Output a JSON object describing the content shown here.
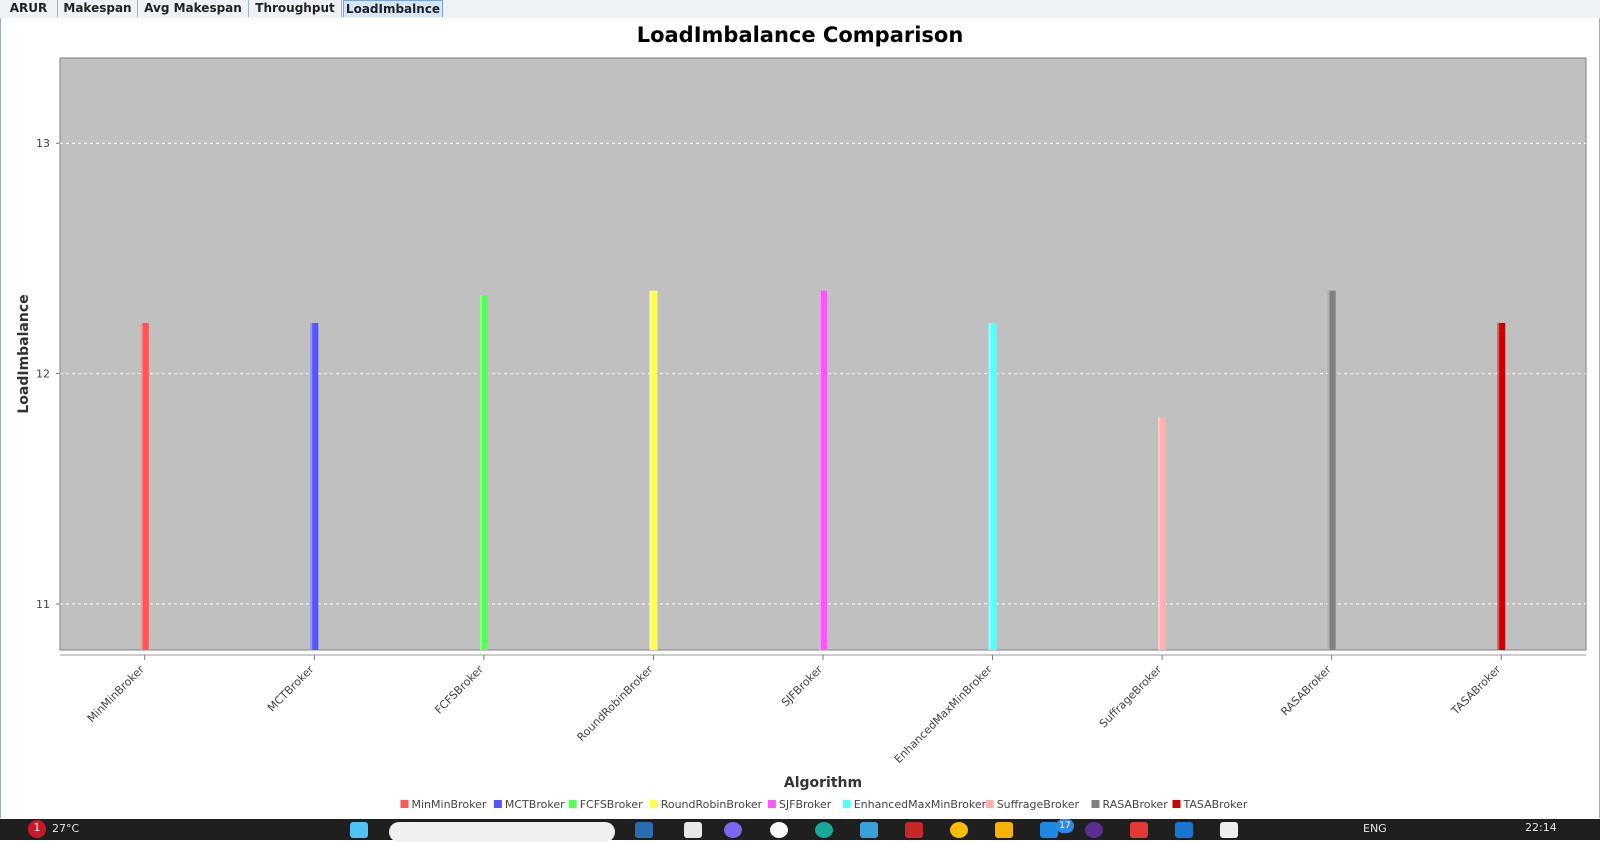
{
  "tabs": [
    {
      "label": "ARUR",
      "active": false
    },
    {
      "label": "Makespan",
      "active": false
    },
    {
      "label": "Avg Makespan",
      "active": false
    },
    {
      "label": "Throughput",
      "active": false
    },
    {
      "label": "LoadImbalnce",
      "active": true
    }
  ],
  "chart_data": {
    "type": "bar",
    "title": "LoadImbalance Comparison",
    "xlabel": "Algorithm",
    "ylabel": "LoadImbalance",
    "ylim": [
      10.8,
      13.37
    ],
    "yticks": [
      11,
      12,
      13
    ],
    "grid": true,
    "legend_position": "bottom",
    "plot_background": "#c0c0c0",
    "categories": [
      "MinMinBroker",
      "MCTBroker",
      "FCFSBroker",
      "RoundRobinBroker",
      "SJFBroker",
      "EnhancedMaxMinBroker",
      "SuffrageBroker",
      "RASABroker",
      "TASABroker"
    ],
    "series": [
      {
        "name": "MinMinBroker",
        "color": "#ff5555",
        "values": [
          12.22,
          null,
          null,
          null,
          null,
          null,
          null,
          null,
          null
        ]
      },
      {
        "name": "MCTBroker",
        "color": "#5555ff",
        "values": [
          null,
          12.22,
          null,
          null,
          null,
          null,
          null,
          null,
          null
        ]
      },
      {
        "name": "FCFSBroker",
        "color": "#55ff55",
        "values": [
          null,
          null,
          12.34,
          null,
          null,
          null,
          null,
          null,
          null
        ]
      },
      {
        "name": "RoundRobinBroker",
        "color": "#ffff55",
        "values": [
          null,
          null,
          null,
          12.36,
          null,
          null,
          null,
          null,
          null
        ]
      },
      {
        "name": "SJFBroker",
        "color": "#ff55ff",
        "values": [
          null,
          null,
          null,
          null,
          12.36,
          null,
          null,
          null,
          null
        ]
      },
      {
        "name": "EnhancedMaxMinBroker",
        "color": "#55ffff",
        "values": [
          null,
          null,
          null,
          null,
          null,
          12.22,
          null,
          null,
          null
        ]
      },
      {
        "name": "SuffrageBroker",
        "color": "#ffafaf",
        "values": [
          null,
          null,
          null,
          null,
          null,
          null,
          11.81,
          null,
          null
        ]
      },
      {
        "name": "RASABroker",
        "color": "#808080",
        "values": [
          null,
          null,
          null,
          null,
          null,
          null,
          null,
          12.36,
          null
        ]
      },
      {
        "name": "TASABroker",
        "color": "#cc0000",
        "values": [
          null,
          null,
          null,
          null,
          null,
          null,
          null,
          null,
          12.22
        ]
      }
    ]
  },
  "taskbar": {
    "weather_alert": "1",
    "temperature": "27°C",
    "notification_count": "17",
    "language": "ENG",
    "time": "22:14"
  }
}
